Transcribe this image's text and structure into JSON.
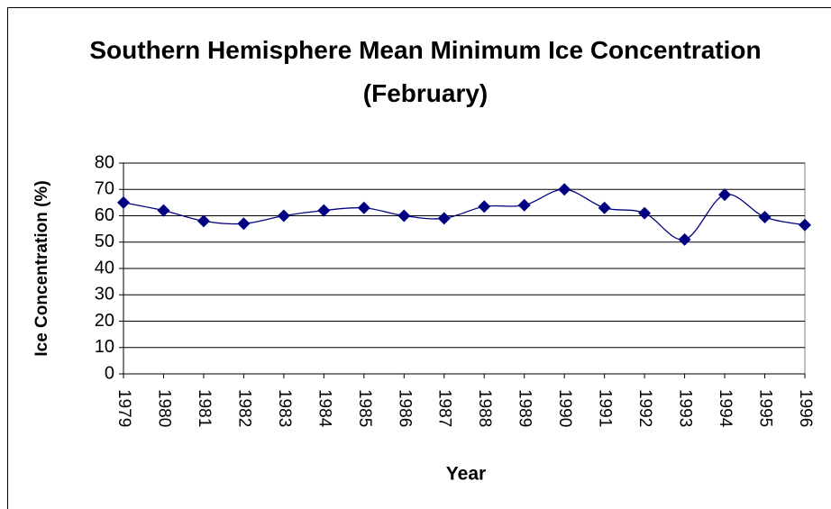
{
  "chart_data": {
    "type": "line",
    "title": "Southern Hemisphere Mean Minimum Ice Concentration (February)",
    "x_label": "Year",
    "y_label": "Ice Concentration (%)",
    "categories": [
      "1979",
      "1980",
      "1981",
      "1982",
      "1983",
      "1984",
      "1985",
      "1986",
      "1987",
      "1988",
      "1989",
      "1990",
      "1991",
      "1992",
      "1993",
      "1994",
      "1995",
      "1996"
    ],
    "series": [
      {
        "name": "Ice Concentration",
        "color": "#000080",
        "values": [
          65,
          62,
          58,
          57,
          60,
          62,
          63,
          60,
          59,
          63.5,
          64,
          70,
          63,
          61,
          51,
          68,
          59.5,
          56.5
        ]
      }
    ],
    "ylim": [
      0,
      80
    ],
    "yticks": [
      0,
      10,
      20,
      30,
      40,
      50,
      60,
      70,
      80
    ],
    "grid": true,
    "smooth": true
  }
}
